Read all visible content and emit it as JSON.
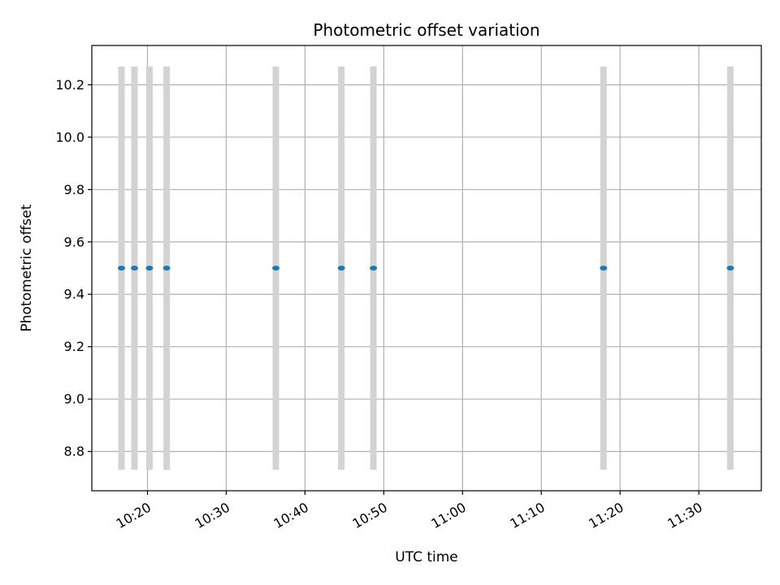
{
  "chart_data": {
    "type": "scatter",
    "title": "Photometric offset variation",
    "xlabel": "UTC time",
    "ylabel": "Photometric offset",
    "x_axis": "time",
    "xlim": [
      "10:12:56",
      "11:37:56"
    ],
    "ylim": [
      8.65,
      10.35
    ],
    "x_ticks": [
      "10:20",
      "10:30",
      "10:40",
      "10:50",
      "11:00",
      "11:10",
      "11:20",
      "11:30"
    ],
    "y_ticks": [
      8.8,
      9.0,
      9.2,
      9.4,
      9.6,
      9.8,
      10.0,
      10.2
    ],
    "grid": true,
    "band_range": [
      8.73,
      10.27
    ],
    "colors": {
      "points": "#1f77b4",
      "bands": "#d3d3d3",
      "grid": "#b0b0b0"
    },
    "series": [
      {
        "points": [
          {
            "x": "10:16:42",
            "y": 9.5
          },
          {
            "x": "10:18:21",
            "y": 9.5
          },
          {
            "x": "10:20:15",
            "y": 9.5
          },
          {
            "x": "10:22:26",
            "y": 9.5
          },
          {
            "x": "10:36:18",
            "y": 9.5
          },
          {
            "x": "10:44:37",
            "y": 9.5
          },
          {
            "x": "10:48:41",
            "y": 9.5
          },
          {
            "x": "11:17:54",
            "y": 9.5
          },
          {
            "x": "11:34:00",
            "y": 9.5
          }
        ]
      }
    ]
  }
}
